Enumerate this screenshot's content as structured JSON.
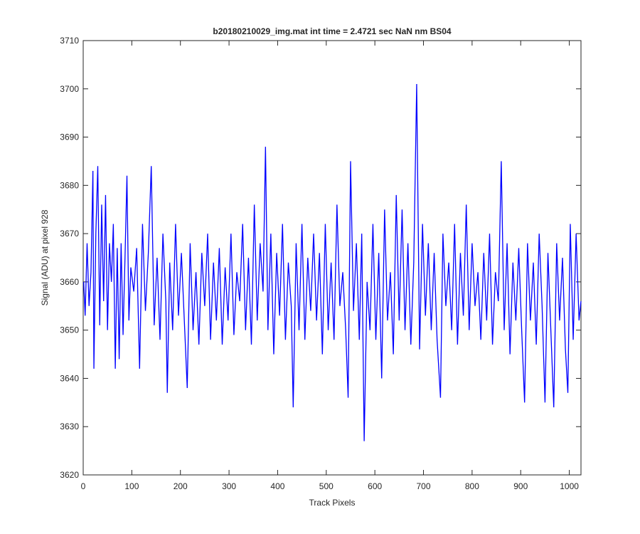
{
  "chart_data": {
    "type": "line",
    "title": "b20180210029_img.mat int time = 2.4721 sec  NaN nm BS04",
    "xlabel": "Track Pixels",
    "ylabel": "Signal (ADU) at pixel 928",
    "x": [
      1,
      4,
      8,
      12,
      16,
      20,
      22,
      26,
      30,
      34,
      38,
      42,
      46,
      50,
      54,
      58,
      62,
      66,
      70,
      74,
      78,
      82,
      86,
      90,
      94,
      98,
      104,
      110,
      116,
      122,
      128,
      134,
      140,
      146,
      152,
      158,
      164,
      170,
      173,
      178,
      184,
      190,
      196,
      202,
      208,
      214,
      220,
      226,
      232,
      238,
      244,
      250,
      256,
      262,
      268,
      274,
      280,
      286,
      292,
      298,
      304,
      310,
      316,
      322,
      328,
      334,
      340,
      346,
      352,
      358,
      364,
      370,
      375,
      380,
      386,
      392,
      398,
      404,
      410,
      416,
      422,
      428,
      432,
      438,
      444,
      450,
      456,
      462,
      468,
      474,
      480,
      486,
      492,
      498,
      504,
      510,
      516,
      522,
      528,
      534,
      540,
      545,
      550,
      556,
      562,
      568,
      573,
      578,
      584,
      590,
      596,
      602,
      608,
      614,
      620,
      626,
      632,
      638,
      644,
      650,
      656,
      662,
      668,
      674,
      680,
      686,
      692,
      698,
      704,
      710,
      716,
      722,
      728,
      735,
      740,
      746,
      752,
      758,
      764,
      770,
      776,
      782,
      788,
      794,
      800,
      806,
      812,
      818,
      824,
      830,
      836,
      842,
      848,
      854,
      860,
      866,
      872,
      878,
      884,
      890,
      896,
      902,
      908,
      914,
      920,
      926,
      932,
      938,
      944,
      950,
      956,
      962,
      968,
      974,
      980,
      986,
      992,
      997,
      1002,
      1008,
      1014,
      1020,
      1024
    ],
    "series": [
      {
        "name": "signal",
        "color": "#0000ff",
        "values": [
          3660,
          3653,
          3668,
          3655,
          3662,
          3683,
          3642,
          3670,
          3684,
          3651,
          3676,
          3656,
          3678,
          3650,
          3668,
          3660,
          3672,
          3642,
          3667,
          3644,
          3668,
          3649,
          3665,
          3682,
          3652,
          3663,
          3658,
          3667,
          3642,
          3672,
          3654,
          3666,
          3684,
          3651,
          3665,
          3648,
          3670,
          3656,
          3637,
          3664,
          3650,
          3672,
          3653,
          3666,
          3652,
          3638,
          3668,
          3650,
          3662,
          3647,
          3666,
          3655,
          3670,
          3648,
          3664,
          3652,
          3667,
          3647,
          3663,
          3652,
          3670,
          3649,
          3662,
          3656,
          3672,
          3650,
          3665,
          3647,
          3676,
          3652,
          3668,
          3658,
          3688,
          3650,
          3670,
          3645,
          3666,
          3653,
          3672,
          3648,
          3664,
          3655,
          3634,
          3668,
          3650,
          3672,
          3648,
          3665,
          3654,
          3670,
          3652,
          3666,
          3645,
          3672,
          3650,
          3664,
          3648,
          3676,
          3655,
          3662,
          3650,
          3636,
          3685,
          3654,
          3668,
          3648,
          3670,
          3627,
          3660,
          3650,
          3672,
          3648,
          3666,
          3640,
          3675,
          3652,
          3662,
          3645,
          3678,
          3652,
          3675,
          3650,
          3668,
          3647,
          3664,
          3701,
          3646,
          3672,
          3653,
          3668,
          3650,
          3666,
          3648,
          3636,
          3670,
          3655,
          3664,
          3650,
          3672,
          3647,
          3666,
          3653,
          3676,
          3650,
          3668,
          3655,
          3662,
          3648,
          3666,
          3652,
          3670,
          3647,
          3662,
          3656,
          3685,
          3650,
          3668,
          3645,
          3664,
          3652,
          3667,
          3650,
          3635,
          3668,
          3652,
          3664,
          3647,
          3670,
          3655,
          3635,
          3666,
          3650,
          3634,
          3668,
          3652,
          3665,
          3646,
          3637,
          3672,
          3648,
          3670,
          3652,
          3656
        ]
      }
    ],
    "xlim": [
      0,
      1024
    ],
    "ylim": [
      3620,
      3710
    ],
    "xticks": [
      0,
      100,
      200,
      300,
      400,
      500,
      600,
      700,
      800,
      900,
      1000
    ],
    "yticks": [
      3620,
      3630,
      3640,
      3650,
      3660,
      3670,
      3680,
      3690,
      3700,
      3710
    ]
  }
}
